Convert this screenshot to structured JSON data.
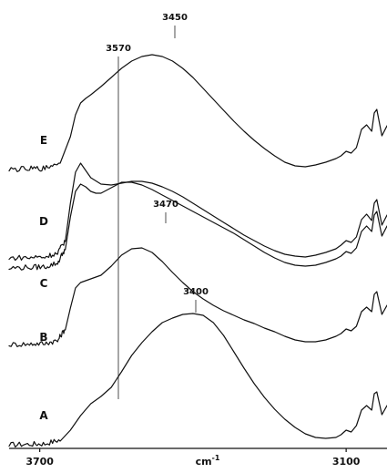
{
  "chart_data": {
    "type": "line",
    "xlabel": "cm",
    "xlabel_superscript": "-1",
    "x_reversed": true,
    "xlim": [
      3760,
      3020
    ],
    "x_ticks": [
      {
        "value": 3700,
        "label": "3700"
      },
      {
        "value": 3100,
        "label": "3100"
      }
    ],
    "grid": false,
    "series": [
      {
        "name": "A",
        "points": [
          [
            3760,
            0.5
          ],
          [
            3720,
            1.2
          ],
          [
            3690,
            1.8
          ],
          [
            3660,
            6
          ],
          [
            3640,
            18
          ],
          [
            3620,
            34
          ],
          [
            3600,
            47
          ],
          [
            3580,
            55
          ],
          [
            3560,
            65
          ],
          [
            3540,
            82
          ],
          [
            3520,
            100
          ],
          [
            3500,
            114
          ],
          [
            3480,
            126
          ],
          [
            3460,
            136
          ],
          [
            3440,
            141
          ],
          [
            3420,
            145
          ],
          [
            3400,
            146
          ],
          [
            3380,
            144
          ],
          [
            3360,
            136
          ],
          [
            3340,
            122
          ],
          [
            3320,
            104
          ],
          [
            3300,
            86
          ],
          [
            3280,
            69
          ],
          [
            3260,
            54
          ],
          [
            3240,
            41
          ],
          [
            3220,
            30
          ],
          [
            3200,
            21
          ],
          [
            3180,
            14
          ],
          [
            3160,
            10
          ],
          [
            3140,
            9
          ],
          [
            3120,
            10
          ],
          [
            3110,
            13
          ],
          [
            3100,
            18
          ],
          [
            3090,
            16
          ],
          [
            3080,
            23
          ],
          [
            3070,
            40
          ],
          [
            3060,
            45
          ],
          [
            3050,
            40
          ],
          [
            3045,
            58
          ],
          [
            3040,
            60
          ],
          [
            3030,
            35
          ],
          [
            3020,
            45
          ]
        ]
      },
      {
        "name": "B",
        "points": [
          [
            3760,
            0.5
          ],
          [
            3720,
            1.2
          ],
          [
            3690,
            1.8
          ],
          [
            3665,
            5
          ],
          [
            3650,
            18
          ],
          [
            3640,
            42
          ],
          [
            3630,
            64
          ],
          [
            3620,
            70
          ],
          [
            3610,
            72
          ],
          [
            3600,
            74
          ],
          [
            3580,
            78
          ],
          [
            3560,
            88
          ],
          [
            3540,
            100
          ],
          [
            3520,
            107
          ],
          [
            3500,
            108
          ],
          [
            3480,
            103
          ],
          [
            3460,
            93
          ],
          [
            3440,
            81
          ],
          [
            3420,
            70
          ],
          [
            3400,
            60
          ],
          [
            3380,
            52
          ],
          [
            3360,
            45
          ],
          [
            3340,
            39
          ],
          [
            3320,
            34
          ],
          [
            3300,
            29
          ],
          [
            3280,
            25
          ],
          [
            3260,
            20
          ],
          [
            3240,
            16
          ],
          [
            3220,
            11
          ],
          [
            3200,
            7
          ],
          [
            3180,
            5
          ],
          [
            3160,
            5
          ],
          [
            3140,
            7
          ],
          [
            3120,
            11
          ],
          [
            3110,
            14
          ],
          [
            3100,
            19
          ],
          [
            3090,
            17
          ],
          [
            3080,
            22
          ],
          [
            3070,
            38
          ],
          [
            3060,
            43
          ],
          [
            3050,
            38
          ],
          [
            3045,
            57
          ],
          [
            3040,
            60
          ],
          [
            3030,
            35
          ],
          [
            3020,
            45
          ]
        ]
      },
      {
        "name": "C",
        "points": [
          [
            3760,
            0.5
          ],
          [
            3720,
            1.2
          ],
          [
            3690,
            1.8
          ],
          [
            3665,
            6
          ],
          [
            3650,
            22
          ],
          [
            3640,
            58
          ],
          [
            3630,
            86
          ],
          [
            3620,
            94
          ],
          [
            3610,
            91
          ],
          [
            3600,
            86
          ],
          [
            3590,
            84
          ],
          [
            3580,
            84
          ],
          [
            3560,
            90
          ],
          [
            3540,
            96
          ],
          [
            3520,
            96
          ],
          [
            3500,
            93
          ],
          [
            3480,
            88
          ],
          [
            3460,
            82
          ],
          [
            3440,
            76
          ],
          [
            3420,
            70
          ],
          [
            3400,
            64
          ],
          [
            3380,
            58
          ],
          [
            3360,
            52
          ],
          [
            3340,
            46
          ],
          [
            3320,
            40
          ],
          [
            3300,
            33
          ],
          [
            3280,
            26
          ],
          [
            3260,
            19
          ],
          [
            3240,
            13
          ],
          [
            3220,
            8
          ],
          [
            3200,
            5
          ],
          [
            3180,
            4
          ],
          [
            3160,
            5
          ],
          [
            3140,
            8
          ],
          [
            3120,
            12
          ],
          [
            3110,
            15
          ],
          [
            3100,
            20
          ],
          [
            3090,
            18
          ],
          [
            3080,
            24
          ],
          [
            3070,
            42
          ],
          [
            3060,
            48
          ],
          [
            3050,
            42
          ],
          [
            3045,
            60
          ],
          [
            3040,
            64
          ],
          [
            3030,
            37
          ],
          [
            3020,
            48
          ]
        ]
      },
      {
        "name": "D",
        "points": [
          [
            3760,
            0.5
          ],
          [
            3720,
            1.2
          ],
          [
            3690,
            1.8
          ],
          [
            3665,
            6
          ],
          [
            3650,
            20
          ],
          [
            3640,
            62
          ],
          [
            3630,
            96
          ],
          [
            3620,
            106
          ],
          [
            3610,
            98
          ],
          [
            3600,
            90
          ],
          [
            3580,
            83
          ],
          [
            3560,
            82
          ],
          [
            3540,
            84
          ],
          [
            3520,
            86
          ],
          [
            3500,
            86
          ],
          [
            3480,
            84
          ],
          [
            3460,
            80
          ],
          [
            3440,
            75
          ],
          [
            3420,
            69
          ],
          [
            3400,
            62
          ],
          [
            3380,
            55
          ],
          [
            3360,
            48
          ],
          [
            3340,
            41
          ],
          [
            3320,
            34
          ],
          [
            3300,
            27
          ],
          [
            3280,
            21
          ],
          [
            3260,
            15
          ],
          [
            3240,
            10
          ],
          [
            3220,
            6
          ],
          [
            3200,
            4
          ],
          [
            3180,
            3
          ],
          [
            3160,
            5
          ],
          [
            3140,
            8
          ],
          [
            3120,
            12
          ],
          [
            3110,
            16
          ],
          [
            3100,
            21
          ],
          [
            3090,
            19
          ],
          [
            3080,
            25
          ],
          [
            3070,
            44
          ],
          [
            3060,
            50
          ],
          [
            3050,
            43
          ],
          [
            3045,
            62
          ],
          [
            3040,
            66
          ],
          [
            3030,
            38
          ],
          [
            3020,
            49
          ]
        ]
      },
      {
        "name": "E",
        "points": [
          [
            3760,
            0.5
          ],
          [
            3720,
            1.2
          ],
          [
            3690,
            1.8
          ],
          [
            3660,
            9
          ],
          [
            3640,
            38
          ],
          [
            3630,
            62
          ],
          [
            3620,
            75
          ],
          [
            3610,
            80
          ],
          [
            3600,
            84
          ],
          [
            3580,
            93
          ],
          [
            3560,
            103
          ],
          [
            3540,
            113
          ],
          [
            3520,
            121
          ],
          [
            3500,
            126
          ],
          [
            3480,
            128
          ],
          [
            3460,
            126
          ],
          [
            3440,
            121
          ],
          [
            3420,
            113
          ],
          [
            3400,
            103
          ],
          [
            3380,
            91
          ],
          [
            3360,
            79
          ],
          [
            3340,
            67
          ],
          [
            3320,
            55
          ],
          [
            3300,
            44
          ],
          [
            3280,
            34
          ],
          [
            3260,
            25
          ],
          [
            3240,
            17
          ],
          [
            3220,
            10
          ],
          [
            3200,
            6
          ],
          [
            3180,
            5
          ],
          [
            3160,
            7
          ],
          [
            3140,
            10
          ],
          [
            3120,
            14
          ],
          [
            3110,
            17
          ],
          [
            3100,
            22
          ],
          [
            3090,
            20
          ],
          [
            3080,
            26
          ],
          [
            3070,
            46
          ],
          [
            3060,
            51
          ],
          [
            3050,
            44
          ],
          [
            3045,
            64
          ],
          [
            3040,
            68
          ],
          [
            3030,
            39
          ],
          [
            3020,
            50
          ]
        ]
      }
    ],
    "annotations": [
      {
        "label": "3570",
        "x": 3570
      },
      {
        "label": "3450",
        "x": 3480
      },
      {
        "label": "3470",
        "x": 3500
      },
      {
        "label": "3400",
        "x": 3400
      }
    ]
  }
}
